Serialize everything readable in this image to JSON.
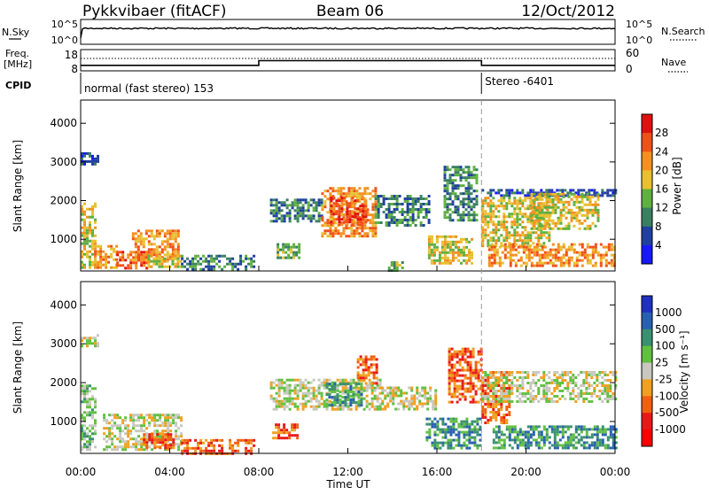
{
  "header": {
    "station": "Pykkvibaer (fitACF)",
    "beam": "Beam 06",
    "date": "12/Oct/2012"
  },
  "top_panels": {
    "nsky_label": "N.Sky",
    "nsearch_label": "N.Search",
    "freq_label_1": "Freq.",
    "freq_label_2": "[MHz]",
    "nave_label": "Nave",
    "cpid_label": "CPID",
    "noise_ticks_left": [
      "10^5",
      "10^0"
    ],
    "noise_ticks_right": [
      "10^5",
      "10^0"
    ],
    "freq_ticks": [
      "18",
      "8"
    ],
    "nave_ticks": [
      "60",
      "0"
    ],
    "cpid_segments": [
      {
        "start_hour": 0,
        "text": "normal (fast stereo) 153"
      },
      {
        "start_hour": 18,
        "text": "Stereo -6401"
      }
    ],
    "freq_steps": [
      {
        "x": 0,
        "y": 10.6
      },
      {
        "x": 8,
        "y": 10.6
      },
      {
        "x": 8,
        "y": 12.8
      },
      {
        "x": 18,
        "y": 12.8
      },
      {
        "x": 18,
        "y": 10.6
      },
      {
        "x": 24,
        "y": 10.6
      }
    ],
    "nave_level": 32
  },
  "x_axis": {
    "label": "Time UT",
    "ticks": [
      "00:00",
      "04:00",
      "08:00",
      "12:00",
      "16:00",
      "20:00",
      "00:00"
    ],
    "range": [
      0,
      24
    ]
  },
  "chart_data": [
    {
      "type": "heatmap",
      "name": "power",
      "ylabel": "Slant Range [km]",
      "ylim": [
        180,
        4600
      ],
      "yticks": [
        1000,
        2000,
        3000,
        4000
      ],
      "colorbar_label": "Power [dB]",
      "colorbar_ticks": [
        "28",
        "24",
        "20",
        "16",
        "12",
        "8",
        "4"
      ],
      "colorbar_colors": [
        "#e01010",
        "#f0501a",
        "#f49020",
        "#e8c030",
        "#5fb040",
        "#3a8060",
        "#2040a0",
        "#1818ff"
      ],
      "regions": [
        {
          "x": [
            0,
            0.7
          ],
          "y": [
            300,
            1950
          ],
          "v": 18
        },
        {
          "x": [
            0.6,
            1.6
          ],
          "y": [
            250,
            850
          ],
          "v": 22
        },
        {
          "x": [
            1.6,
            3
          ],
          "y": [
            250,
            700
          ],
          "v": 24
        },
        {
          "x": [
            2.3,
            4.4
          ],
          "y": [
            450,
            1250
          ],
          "v": 20
        },
        {
          "x": [
            3,
            4.5
          ],
          "y": [
            300,
            600
          ],
          "v": 16
        },
        {
          "x": [
            4.5,
            7.8
          ],
          "y": [
            200,
            600
          ],
          "v": 10
        },
        {
          "x": [
            0,
            0.8
          ],
          "y": [
            2950,
            3250
          ],
          "v": 6
        },
        {
          "x": [
            8.8,
            9.8
          ],
          "y": [
            550,
            900
          ],
          "v": 12
        },
        {
          "x": [
            8.5,
            10.8
          ],
          "y": [
            1500,
            2050
          ],
          "v": 10
        },
        {
          "x": [
            10.8,
            13.2
          ],
          "y": [
            1100,
            2350
          ],
          "v": 20
        },
        {
          "x": [
            11.2,
            12.8
          ],
          "y": [
            1350,
            2100
          ],
          "v": 26
        },
        {
          "x": [
            13.2,
            15.6
          ],
          "y": [
            1350,
            2150
          ],
          "v": 10
        },
        {
          "x": [
            13.8,
            14.4
          ],
          "y": [
            200,
            500
          ],
          "v": 12
        },
        {
          "x": [
            15.6,
            17.6
          ],
          "y": [
            400,
            1100
          ],
          "v": 16
        },
        {
          "x": [
            16.3,
            17.8
          ],
          "y": [
            1500,
            2900
          ],
          "v": 8
        },
        {
          "x": [
            18,
            24
          ],
          "y": [
            2100,
            2300
          ],
          "v": 4
        },
        {
          "x": [
            18,
            21
          ],
          "y": [
            800,
            2100
          ],
          "v": 18
        },
        {
          "x": [
            20.2,
            23.2
          ],
          "y": [
            1300,
            2200
          ],
          "v": 16
        },
        {
          "x": [
            18.3,
            24
          ],
          "y": [
            300,
            900
          ],
          "v": 22
        }
      ]
    },
    {
      "type": "heatmap",
      "name": "velocity",
      "ylabel": "Slant Range [km]",
      "ylim": [
        180,
        4600
      ],
      "yticks": [
        1000,
        2000,
        3000,
        4000
      ],
      "colorbar_label": "Velocity [m s⁻¹]",
      "colorbar_ticks": [
        "1000",
        "500",
        "100",
        "25",
        "-25",
        "-100",
        "-500",
        "-1000"
      ],
      "colorbar_colors": [
        "#2030c0",
        "#2860b0",
        "#3a9070",
        "#60c040",
        "#c8c8c0",
        "#f0a020",
        "#f06010",
        "#e81818",
        "#ff0000"
      ],
      "regions": [
        {
          "x": [
            0,
            0.7
          ],
          "y": [
            300,
            1950
          ],
          "v": 80
        },
        {
          "x": [
            0,
            0.8
          ],
          "y": [
            2950,
            3250
          ],
          "v": 0
        },
        {
          "x": [
            1,
            4.5
          ],
          "y": [
            300,
            1200
          ],
          "v": 0
        },
        {
          "x": [
            2.8,
            4.2
          ],
          "y": [
            300,
            700
          ],
          "v": -150
        },
        {
          "x": [
            4.5,
            7.8
          ],
          "y": [
            200,
            550
          ],
          "v": -200
        },
        {
          "x": [
            8.6,
            9.7
          ],
          "y": [
            550,
            950
          ],
          "v": -300
        },
        {
          "x": [
            8.5,
            13.5
          ],
          "y": [
            1300,
            2100
          ],
          "v": 0
        },
        {
          "x": [
            11,
            12.6
          ],
          "y": [
            1400,
            2000
          ],
          "v": 300
        },
        {
          "x": [
            12.4,
            13.3
          ],
          "y": [
            2000,
            2700
          ],
          "v": -400
        },
        {
          "x": [
            13.5,
            16
          ],
          "y": [
            1300,
            1900
          ],
          "v": 0
        },
        {
          "x": [
            15.5,
            18
          ],
          "y": [
            300,
            1100
          ],
          "v": 300
        },
        {
          "x": [
            16.5,
            18
          ],
          "y": [
            1500,
            2900
          ],
          "v": -200
        },
        {
          "x": [
            18,
            19.2
          ],
          "y": [
            1000,
            2300
          ],
          "v": -300
        },
        {
          "x": [
            18,
            24
          ],
          "y": [
            1500,
            2300
          ],
          "v": 0
        },
        {
          "x": [
            18.5,
            24
          ],
          "y": [
            300,
            900
          ],
          "v": 400
        }
      ]
    }
  ]
}
